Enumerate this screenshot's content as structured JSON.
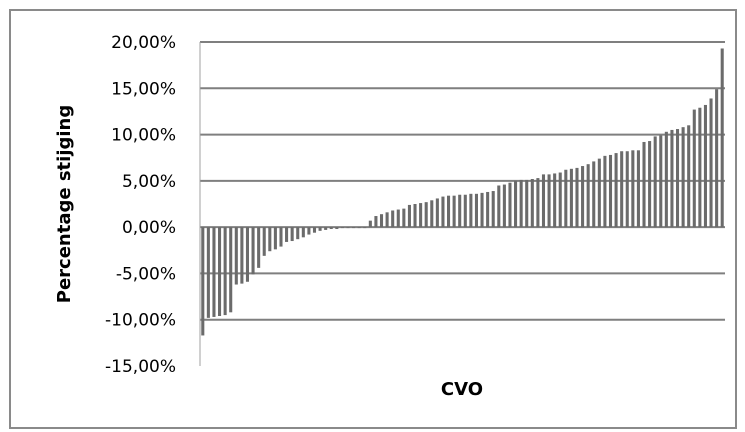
{
  "chart_data": {
    "type": "bar",
    "xlabel": "CVO",
    "ylabel": "Percentage stijging",
    "ylim": [
      -15,
      20
    ],
    "yticks": [
      20,
      15,
      10,
      5,
      0,
      -5,
      -10,
      -15
    ],
    "ytick_labels": [
      "20,00%",
      "15,00%",
      "10,00%",
      "5,00%",
      "0,00%",
      "-5,00%",
      "-10,00%",
      "-15,00%"
    ],
    "grid": true,
    "legend": "none",
    "bar_color": "#6b6b6b",
    "grid_color": "#7f7f7f",
    "values": [
      -11.7,
      -9.8,
      -9.7,
      -9.6,
      -9.5,
      -9.2,
      -6.2,
      -6.1,
      -5.9,
      -5.1,
      -4.4,
      -3.1,
      -2.6,
      -2.4,
      -2.1,
      -1.6,
      -1.5,
      -1.3,
      -1.1,
      -0.8,
      -0.6,
      -0.4,
      -0.3,
      -0.2,
      -0.2,
      -0.1,
      -0.1,
      -0.1,
      -0.1,
      -0.1,
      0.7,
      1.2,
      1.4,
      1.6,
      1.8,
      1.9,
      2.0,
      2.4,
      2.5,
      2.6,
      2.7,
      2.9,
      3.1,
      3.3,
      3.4,
      3.4,
      3.5,
      3.5,
      3.6,
      3.6,
      3.7,
      3.8,
      3.9,
      4.5,
      4.6,
      4.8,
      5.0,
      5.1,
      5.1,
      5.2,
      5.3,
      5.7,
      5.7,
      5.8,
      5.9,
      6.2,
      6.3,
      6.4,
      6.6,
      6.8,
      7.1,
      7.4,
      7.7,
      7.8,
      8.0,
      8.2,
      8.2,
      8.3,
      8.3,
      9.2,
      9.3,
      9.8,
      9.9,
      10.3,
      10.5,
      10.6,
      10.8,
      11.0,
      12.7,
      12.9,
      13.2,
      13.9,
      14.9,
      19.3
    ]
  }
}
